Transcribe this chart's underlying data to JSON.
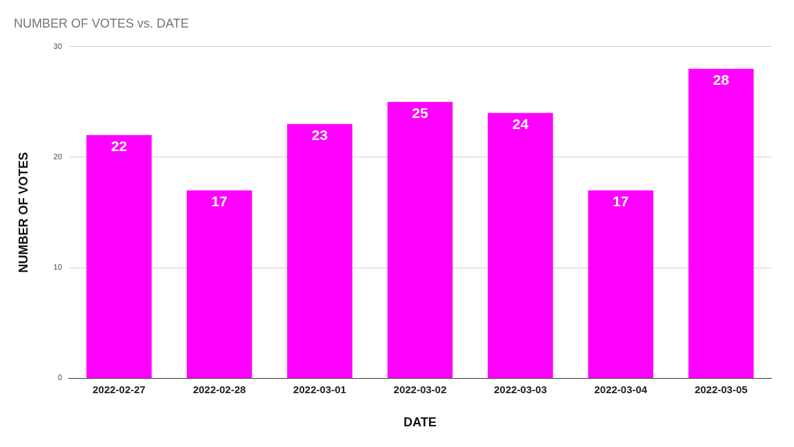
{
  "chart_data": {
    "type": "bar",
    "title": "NUMBER OF VOTES vs. DATE",
    "xlabel": "DATE",
    "ylabel": "NUMBER OF VOTES",
    "categories": [
      "2022-02-27",
      "2022-02-28",
      "2022-03-01",
      "2022-03-02",
      "2022-03-03",
      "2022-03-04",
      "2022-03-05"
    ],
    "values": [
      22,
      17,
      23,
      25,
      24,
      17,
      28
    ],
    "color": "#ff00ff",
    "ylim": [
      0,
      30
    ],
    "yticks": [
      0,
      10,
      20,
      30
    ],
    "grid": "y",
    "legend": false,
    "data_labels": true
  }
}
